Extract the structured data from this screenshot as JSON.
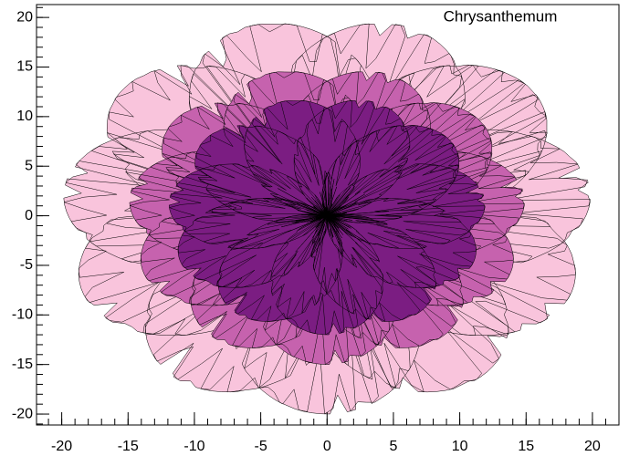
{
  "chart_data": {
    "type": "polar-curve",
    "title": "Chrysanthemum",
    "points": 2000,
    "series": [
      {
        "color": "#f9c4dc",
        "scale": 2
      },
      {
        "color": "#c662ae",
        "scale": 1.5
      },
      {
        "color": "#7b1d82",
        "scale": 1.2
      }
    ],
    "xlim": [
      -21.9,
      22.0
    ],
    "xticks": [
      -20,
      -15,
      -10,
      -5,
      0,
      5,
      10,
      15,
      20
    ],
    "ylim": [
      -21.1,
      21.3
    ],
    "yticks": [
      -20,
      -15,
      -10,
      -5,
      0,
      5,
      10,
      15,
      20
    ]
  }
}
